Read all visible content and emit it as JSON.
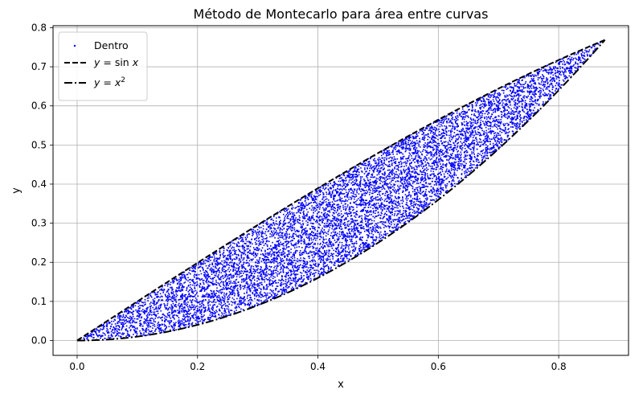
{
  "chart_data": {
    "type": "scatter",
    "title": "Método de Montecarlo para área entre curvas",
    "xlabel": "x",
    "ylabel": "y",
    "xlim": [
      -0.04,
      0.916
    ],
    "ylim": [
      -0.038,
      0.805
    ],
    "xticks": [
      "0.0",
      "0.2",
      "0.4",
      "0.6",
      "0.8"
    ],
    "xtick_values": [
      0.0,
      0.2,
      0.4,
      0.6,
      0.8
    ],
    "yticks": [
      "0.0",
      "0.1",
      "0.2",
      "0.3",
      "0.4",
      "0.5",
      "0.6",
      "0.7",
      "0.8"
    ],
    "ytick_values": [
      0.0,
      0.1,
      0.2,
      0.3,
      0.4,
      0.5,
      0.6,
      0.7,
      0.8
    ],
    "grid": true,
    "legend_position": "top-left",
    "x_range": [
      0.0,
      0.8767
    ],
    "series": [
      {
        "name": "Dentro",
        "kind": "scatter",
        "color": "#0000ff",
        "region": "x^2 <= y <= sin(x)",
        "x_range": [
          0.0,
          0.8767
        ]
      },
      {
        "name": "$y = \\sin x$",
        "kind": "line",
        "style": "dashed",
        "color": "#000000",
        "function": "sin(x)",
        "x_range": [
          0.0,
          0.8767
        ]
      },
      {
        "name": "$y = x^2$",
        "kind": "line",
        "style": "dashdot",
        "color": "#000000",
        "function": "x^2",
        "x_range": [
          0.0,
          0.8767
        ]
      }
    ]
  }
}
